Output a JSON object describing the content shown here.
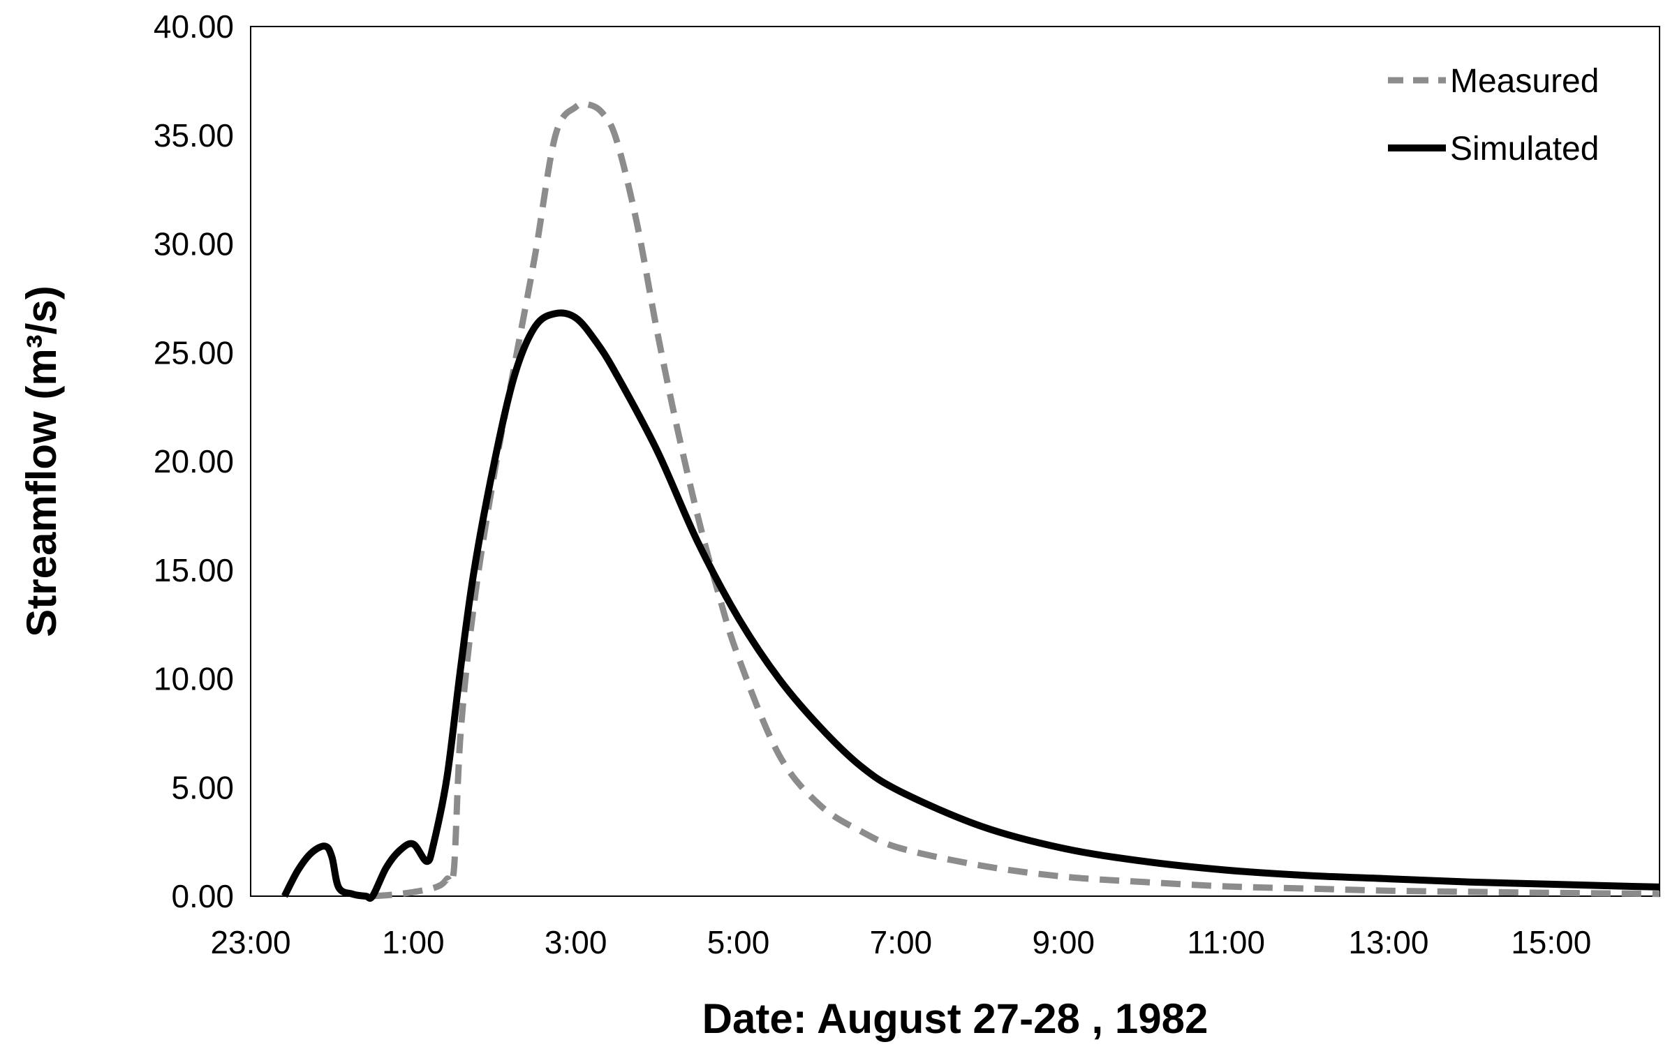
{
  "chart_data": {
    "type": "line",
    "xlabel": "Date: August 27-28 , 1982",
    "ylabel": "Streamflow (m³/s)",
    "ylim": [
      0,
      40
    ],
    "xlim": [
      "23:00",
      "16:20"
    ],
    "x_tick_labels": [
      "23:00",
      "1:00",
      "3:00",
      "5:00",
      "7:00",
      "9:00",
      "11:00",
      "13:00",
      "15:00"
    ],
    "y_tick_labels": [
      "0.00",
      "5.00",
      "10.00",
      "15.00",
      "20.00",
      "25.00",
      "30.00",
      "35.00",
      "40.00"
    ],
    "legend_position": "top-right",
    "grid": false,
    "series": [
      {
        "name": "Measured",
        "color": "#8c8c8c",
        "style": "dashed",
        "x": [
          "0:30",
          "0:50",
          "1:10",
          "1:20",
          "1:25",
          "1:30",
          "1:35",
          "1:45",
          "2:00",
          "2:15",
          "2:30",
          "2:45",
          "3:00",
          "3:10",
          "3:20",
          "3:30",
          "3:45",
          "4:00",
          "4:15",
          "4:30",
          "4:45",
          "5:00",
          "5:30",
          "6:00",
          "6:30",
          "7:00",
          "8:00",
          "9:00",
          "10:00",
          "11:00",
          "12:00",
          "13:00",
          "14:00",
          "15:00",
          "16:00",
          "16:20"
        ],
        "y": [
          0,
          0.1,
          0.3,
          0.5,
          0.8,
          1.2,
          7.5,
          13.5,
          19.5,
          24.5,
          29.5,
          35,
          36.3,
          36.4,
          36,
          34.8,
          31,
          26,
          21.5,
          17.5,
          14,
          11,
          6.5,
          4.2,
          3,
          2.2,
          1.4,
          0.9,
          0.65,
          0.45,
          0.35,
          0.25,
          0.2,
          0.15,
          0.12,
          0.1
        ]
      },
      {
        "name": "Simulated",
        "color": "#000000",
        "style": "solid",
        "x": [
          "23:25",
          "23:35",
          "23:45",
          "23:55",
          "0:00",
          "0:05",
          "0:15",
          "0:25",
          "0:30",
          "0:40",
          "0:50",
          "1:00",
          "1:10",
          "1:15",
          "1:25",
          "1:35",
          "1:45",
          "2:00",
          "2:15",
          "2:30",
          "2:45",
          "3:00",
          "3:15",
          "3:30",
          "4:00",
          "4:30",
          "5:00",
          "5:30",
          "6:00",
          "6:30",
          "7:00",
          "8:00",
          "9:00",
          "10:00",
          "11:00",
          "12:00",
          "13:00",
          "14:00",
          "15:00",
          "16:00",
          "16:20"
        ],
        "y": [
          0,
          1.2,
          2,
          2.3,
          1.8,
          0.4,
          0.1,
          0,
          0,
          1.3,
          2.1,
          2.4,
          1.6,
          2.4,
          5.5,
          10.5,
          15,
          20,
          24,
          26.2,
          26.8,
          26.6,
          25.5,
          24,
          20.5,
          16.3,
          12.8,
          10,
          7.8,
          6,
          4.8,
          3.2,
          2.2,
          1.6,
          1.2,
          0.95,
          0.8,
          0.65,
          0.55,
          0.45,
          0.42
        ]
      }
    ]
  }
}
